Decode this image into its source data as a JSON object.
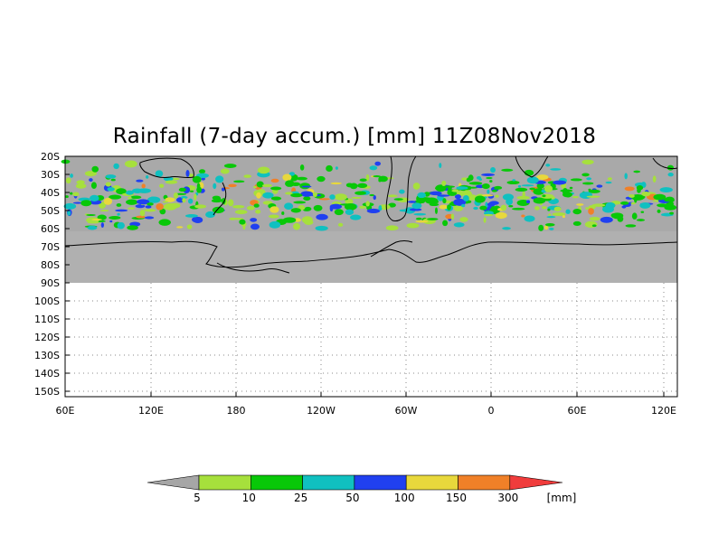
{
  "title": "Rainfall (7-day accum.) [mm] 11Z08Nov2018",
  "lat_labels": [
    "20S",
    "30S",
    "40S",
    "50S",
    "60S",
    "70S",
    "80S",
    "90S",
    "100S",
    "110S",
    "120S",
    "130S",
    "140S",
    "150S"
  ],
  "lon_labels": [
    "60E",
    "120E",
    "180",
    "120W",
    "60W",
    "0",
    "60E",
    "120E"
  ],
  "colorbar": {
    "unit": "[mm]",
    "labels": [
      "5",
      "10",
      "25",
      "50",
      "100",
      "150",
      "300"
    ],
    "colors": {
      "below": "#a6a6a6",
      "bins": [
        "#a6e03c",
        "#08c808",
        "#10c0c0",
        "#2040f0",
        "#e8d83c",
        "#f08028"
      ],
      "above": "#f03c3c"
    }
  },
  "map_colors": {
    "no_rain": "#a9a9a9",
    "antarctica": "#b0b0b0",
    "coastline": "#000000",
    "grid": "#888888"
  },
  "chart_data": {
    "type": "heatmap",
    "title": "Rainfall (7-day accum.) [mm] 11Z08Nov2018",
    "unit": "mm",
    "valid_time": "11Z08Nov2018",
    "lat_range": [
      "20S",
      "150S"
    ],
    "lon_range": [
      "60E",
      "120E"
    ],
    "data_extent_lat": [
      "20S",
      "60S"
    ],
    "levels": [
      5,
      10,
      25,
      50,
      100,
      150,
      300
    ]
  }
}
